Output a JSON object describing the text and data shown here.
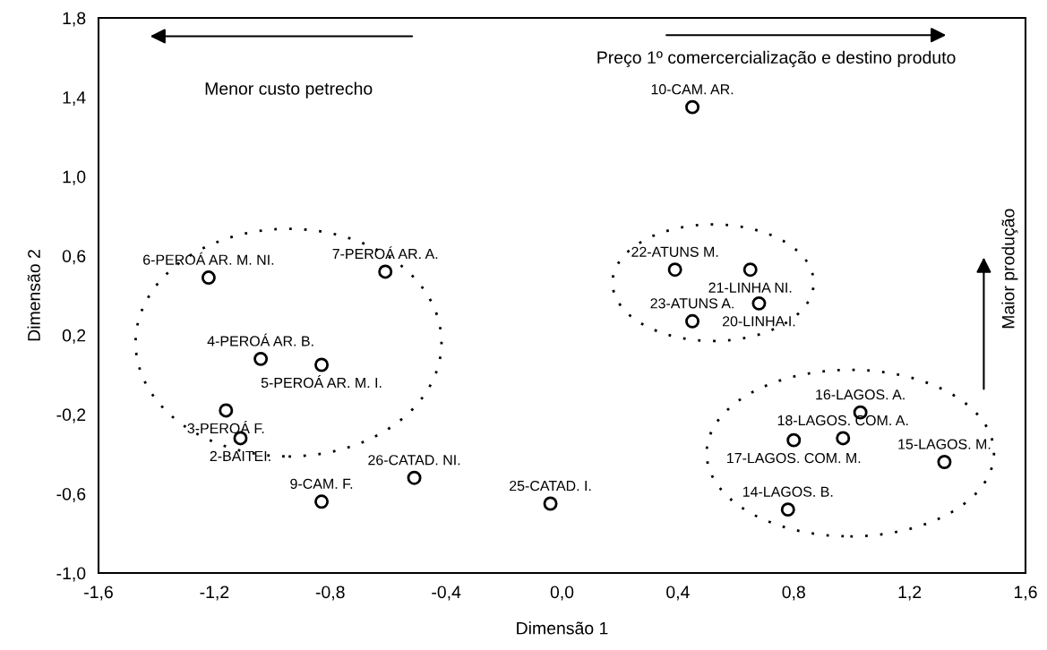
{
  "chart_data": {
    "type": "scatter",
    "xlabel": "Dimensão 1",
    "ylabel": "Dimensão 2",
    "xlim": [
      -1.6,
      1.6
    ],
    "xticks": [
      {
        "value": -1.6,
        "label": "-1,6"
      },
      {
        "value": -1.2,
        "label": "-1,2"
      },
      {
        "value": -0.8,
        "label": "-0,8"
      },
      {
        "value": -0.4,
        "label": "-0,4"
      },
      {
        "value": 0,
        "label": "0,0"
      },
      {
        "value": 0.4,
        "label": "0,4"
      },
      {
        "value": 0.8,
        "label": "0,8"
      },
      {
        "value": 1.2,
        "label": "1,2"
      },
      {
        "value": 1.6,
        "label": "1,6"
      }
    ],
    "ylim": [
      -1.0,
      1.8
    ],
    "yticks": [
      {
        "value": -1.0,
        "label": "-1,0"
      },
      {
        "value": -0.6,
        "label": "-0,6"
      },
      {
        "value": -0.2,
        "label": "-0,2"
      },
      {
        "value": 0.2,
        "label": "0,2"
      },
      {
        "value": 0.6,
        "label": "0,6"
      },
      {
        "value": 1.0,
        "label": "1,0"
      },
      {
        "value": 1.4,
        "label": "1,4"
      },
      {
        "value": 1.8,
        "label": "1,8"
      }
    ],
    "grid": false,
    "marker": "circle",
    "series": [
      {
        "color": "#000000",
        "x": [
          -1.22,
          -0.61,
          -1.04,
          -0.83,
          -1.16,
          -1.11,
          -0.51,
          -0.83,
          -0.04,
          0.45,
          0.39,
          0.65,
          0.68,
          0.45,
          1.03,
          0.97,
          0.8,
          1.32,
          0.78
        ],
        "values": [
          0.49,
          0.52,
          0.08,
          0.05,
          -0.18,
          -0.32,
          -0.52,
          -0.64,
          -0.65,
          1.35,
          0.53,
          0.53,
          0.36,
          0.27,
          -0.19,
          -0.32,
          -0.33,
          -0.44,
          -0.68
        ]
      }
    ],
    "annotations": [
      {
        "text": "6-PEROÁ AR. M. NI.",
        "x": -1.22,
        "y": 0.49
      },
      {
        "text": "7-PEROÁ AR. A.",
        "x": -0.61,
        "y": 0.52
      },
      {
        "text": "4-PEROÁ AR. B.",
        "x": -1.04,
        "y": 0.08
      },
      {
        "text": "5-PEROÁ AR. M. I.",
        "x": -0.83,
        "y": 0.05
      },
      {
        "text": "3-PEROÁ F.",
        "x": -1.16,
        "y": -0.18
      },
      {
        "text": "2-BAITEI.",
        "x": -1.11,
        "y": -0.32
      },
      {
        "text": "26-CATAD. NI.",
        "x": -0.51,
        "y": -0.52
      },
      {
        "text": "9-CAM. F.",
        "x": -0.83,
        "y": -0.64
      },
      {
        "text": "25-CATAD. I.",
        "x": -0.04,
        "y": -0.65
      },
      {
        "text": "10-CAM. AR.",
        "x": 0.45,
        "y": 1.35
      },
      {
        "text": "22-ATUNS M.",
        "x": 0.39,
        "y": 0.53
      },
      {
        "text": "21-LINHA NI.",
        "x": 0.65,
        "y": 0.53
      },
      {
        "text": "20-LINHA I.",
        "x": 0.68,
        "y": 0.36
      },
      {
        "text": "23-ATUNS A.",
        "x": 0.45,
        "y": 0.27
      },
      {
        "text": "16-LAGOS. A.",
        "x": 1.03,
        "y": -0.19
      },
      {
        "text": "18-LAGOS. COM. A.",
        "x": 0.97,
        "y": -0.32
      },
      {
        "text": "17-LAGOS. COM. M.",
        "x": 0.8,
        "y": -0.33
      },
      {
        "text": "15-LAGOS. M.",
        "x": 1.32,
        "y": -0.44
      },
      {
        "text": "14-LAGOS. B.",
        "x": 0.78,
        "y": -0.68
      },
      "Menor custo petrecho",
      "Preço 1º comercercialização e destino produto",
      "Maior produção"
    ]
  }
}
